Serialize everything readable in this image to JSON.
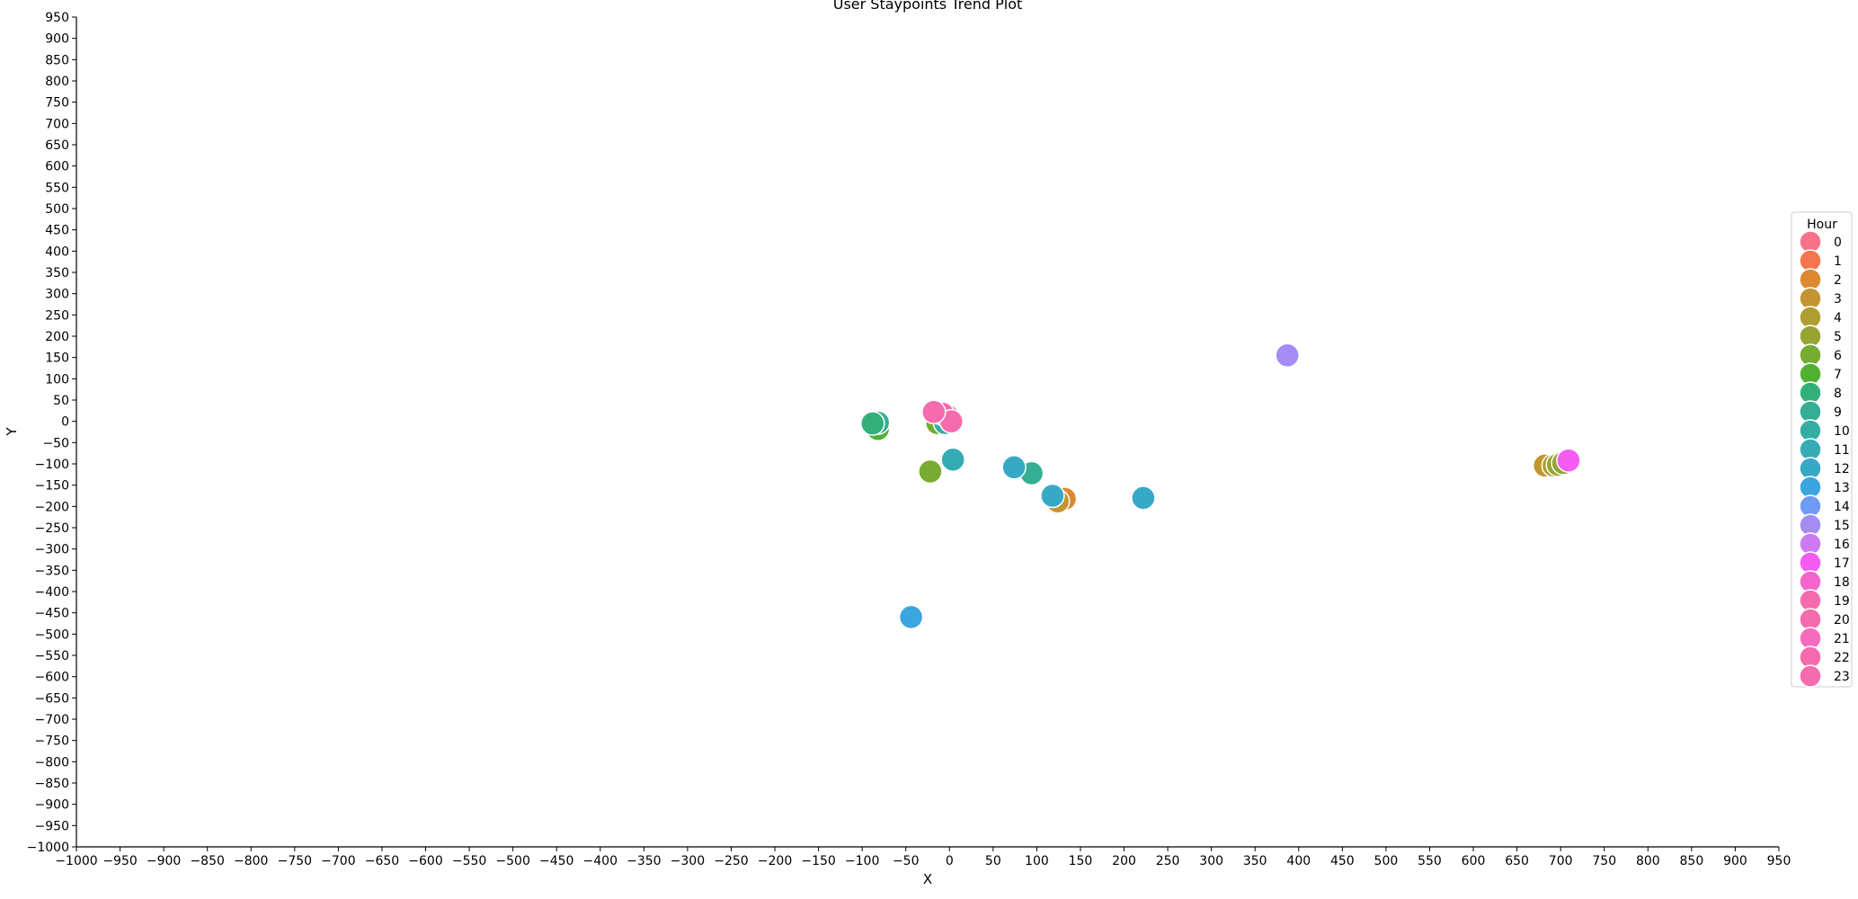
{
  "chart_data": {
    "type": "scatter",
    "title": "User Staypoints Trend Plot",
    "xlabel": "X",
    "ylabel": "Y",
    "xlim": [
      -1000,
      950
    ],
    "ylim": [
      -1000,
      950
    ],
    "x_tick_step": 50,
    "y_tick_step": 50,
    "grid": false,
    "legend": {
      "title": "Hour",
      "placement": "right",
      "entries": [
        "0",
        "1",
        "2",
        "3",
        "4",
        "5",
        "6",
        "7",
        "8",
        "9",
        "10",
        "11",
        "12",
        "13",
        "14",
        "15",
        "16",
        "17",
        "18",
        "19",
        "20",
        "21",
        "22",
        "23"
      ]
    },
    "hue_colors": [
      "#f77189",
      "#f7754f",
      "#dc8932",
      "#c39532",
      "#ae9d31",
      "#97a431",
      "#77ab31",
      "#50b131",
      "#33b07a",
      "#35ae93",
      "#36ada4",
      "#37abb4",
      "#38a9c5",
      "#3aa5df",
      "#6e9bf4",
      "#a48cf4",
      "#cc7af4",
      "#f45cf2",
      "#f565cc",
      "#f66bad",
      "#f66bad",
      "#f56cbf",
      "#f66bad",
      "#f66bad"
    ],
    "points": [
      {
        "x": 387,
        "y": 155,
        "hour": 15
      },
      {
        "x": -44,
        "y": -460,
        "hour": 13
      },
      {
        "x": 222,
        "y": -180,
        "hour": 12
      },
      {
        "x": 132,
        "y": -182,
        "hour": 2
      },
      {
        "x": 124,
        "y": -188,
        "hour": 3
      },
      {
        "x": 118,
        "y": -175,
        "hour": 12
      },
      {
        "x": 94,
        "y": -122,
        "hour": 9
      },
      {
        "x": 74,
        "y": -108,
        "hour": 12
      },
      {
        "x": 4,
        "y": -90,
        "hour": 11
      },
      {
        "x": -22,
        "y": -118,
        "hour": 6
      },
      {
        "x": -82,
        "y": -18,
        "hour": 7
      },
      {
        "x": -82,
        "y": -3,
        "hour": 9
      },
      {
        "x": -88,
        "y": -5,
        "hour": 8
      },
      {
        "x": -14,
        "y": -4,
        "hour": 6
      },
      {
        "x": -5,
        "y": -4,
        "hour": 10
      },
      {
        "x": -2,
        "y": 12,
        "hour": 18
      },
      {
        "x": -8,
        "y": 18,
        "hour": 22
      },
      {
        "x": 2,
        "y": 0,
        "hour": 19
      },
      {
        "x": -18,
        "y": 22,
        "hour": 23
      },
      {
        "x": 682,
        "y": -104,
        "hour": 3
      },
      {
        "x": 692,
        "y": -104,
        "hour": 4
      },
      {
        "x": 697,
        "y": -102,
        "hour": 5
      },
      {
        "x": 703,
        "y": -98,
        "hour": 5
      },
      {
        "x": 709,
        "y": -92,
        "hour": 17
      }
    ]
  }
}
